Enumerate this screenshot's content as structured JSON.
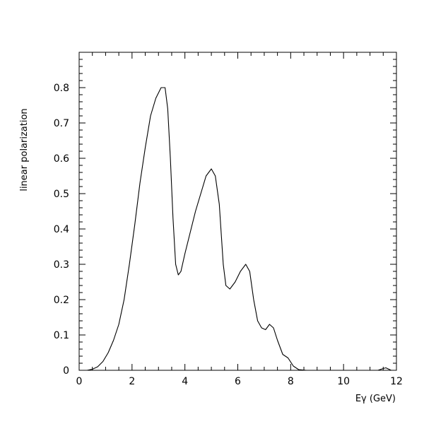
{
  "chart_data": {
    "type": "line",
    "title": "",
    "xlabel": "Eγ (GeV)",
    "ylabel": "linear polarization",
    "xlim": [
      0,
      12
    ],
    "ylim": [
      0,
      0.9
    ],
    "x_ticks": [
      0,
      2,
      4,
      6,
      8,
      10,
      12
    ],
    "x_tick_labels": [
      "0",
      "2",
      "4",
      "6",
      "8",
      "10",
      "12"
    ],
    "y_ticks": [
      0,
      0.1,
      0.2,
      0.3,
      0.4,
      0.5,
      0.6,
      0.7,
      0.8
    ],
    "y_tick_labels": [
      "0",
      "0.1",
      "0.2",
      "0.3",
      "0.4",
      "0.5",
      "0.6",
      "0.7",
      "0.8"
    ],
    "grid": false,
    "legend": "none",
    "line_color": "#000000",
    "series": [
      {
        "x": [
          0.0,
          0.3,
          0.5,
          0.7,
          0.9,
          1.1,
          1.3,
          1.5,
          1.7,
          1.9,
          2.1,
          2.3,
          2.5,
          2.7,
          2.9,
          3.1,
          3.25,
          3.35,
          3.45,
          3.55,
          3.65,
          3.75,
          3.85,
          4.0,
          4.2,
          4.4,
          4.6,
          4.8,
          5.0,
          5.15,
          5.3,
          5.45,
          5.55,
          5.7,
          5.9,
          6.1,
          6.3,
          6.45,
          6.6,
          6.75,
          6.9,
          7.05,
          7.2,
          7.35,
          7.5,
          7.7,
          7.9,
          8.1,
          8.3,
          8.6,
          9.0,
          9.5,
          10.0,
          10.5,
          11.0,
          11.3,
          11.5,
          11.6,
          11.8,
          12.0
        ],
        "y": [
          0.0,
          0.0,
          0.003,
          0.01,
          0.025,
          0.05,
          0.085,
          0.13,
          0.2,
          0.3,
          0.41,
          0.53,
          0.63,
          0.72,
          0.77,
          0.8,
          0.8,
          0.74,
          0.6,
          0.43,
          0.3,
          0.27,
          0.28,
          0.33,
          0.39,
          0.45,
          0.5,
          0.55,
          0.57,
          0.55,
          0.47,
          0.3,
          0.24,
          0.23,
          0.25,
          0.28,
          0.3,
          0.28,
          0.2,
          0.14,
          0.12,
          0.115,
          0.13,
          0.12,
          0.085,
          0.045,
          0.035,
          0.012,
          0.002,
          0.0,
          0.0,
          0.0,
          0.0,
          0.0,
          0.0,
          0.0,
          0.005,
          0.007,
          0.0,
          0.0
        ]
      }
    ]
  }
}
